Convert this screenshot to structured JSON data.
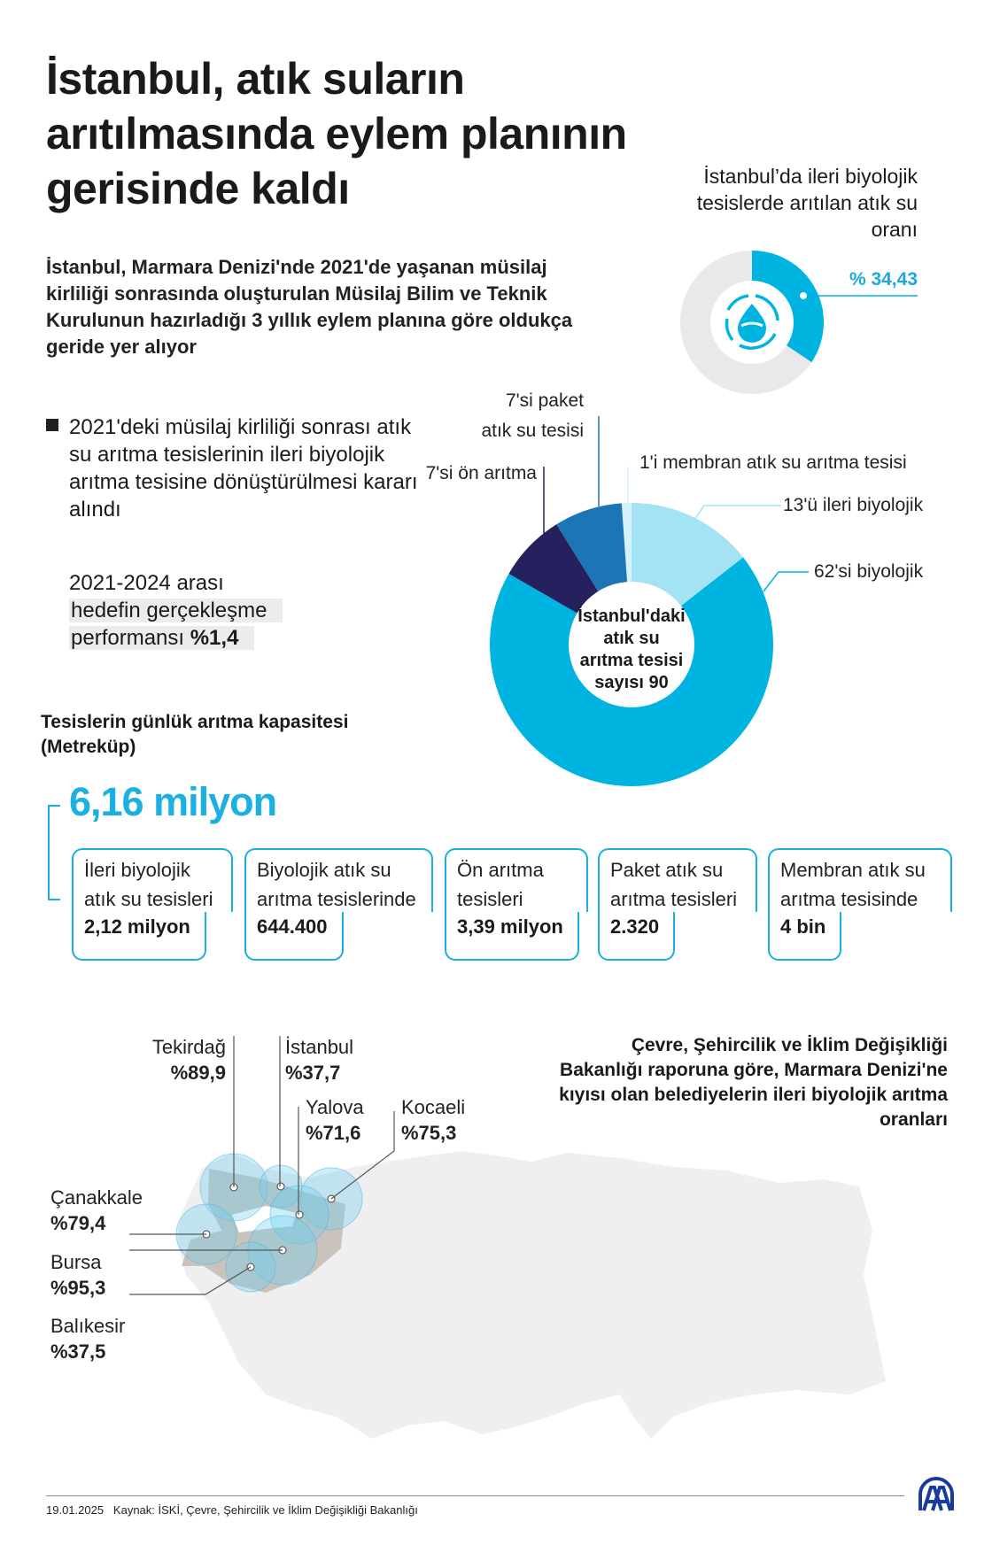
{
  "header": {
    "title_lines": [
      "İstanbul, atık suların",
      "arıtılmasında eylem planının",
      "gerisinde kaldı"
    ],
    "subtitle": "İstanbul, Marmara Denizi'nde 2021'de yaşanan müsilaj kirliliği sonrasında oluşturulan Müsilaj Bilim ve Teknik Kurulunun hazırladığı 3 yıllık eylem planına göre oldukça geride yer alıyor"
  },
  "rate": {
    "title": "İstanbul’da ileri biyolojik tesislerde arıtılan atık su oranı",
    "value_label": "% 34,43",
    "value": 34.43,
    "color": "#00b4e2",
    "bg": "#e9e9ec",
    "icon": "water-drop-recycle-icon"
  },
  "bullet": {
    "text": "2021'deki müsilaj kirliliği sonrası atık su arıtma tesislerinin ileri biyolojik arıtma tesisine dönüştürülmesi kararı alındı",
    "perf_line1": "2021-2024 arası",
    "perf_line2": "hedefin gerçekleşme",
    "perf_line3": "performansı ",
    "perf_value": "%1,4"
  },
  "chart_data": {
    "type": "pie",
    "title": "İstanbul'daki atık su arıtma tesisi sayısı 90",
    "center_lines": [
      "İstanbul'daki",
      "atık su",
      "arıtma tesisi",
      "sayısı 90"
    ],
    "total": 90,
    "slices": [
      {
        "label": "1'i membran atık su arıtma tesisi",
        "value": 1,
        "color": "#d6f1fa"
      },
      {
        "label": "13'ü ileri biyolojik",
        "value": 13,
        "color": "#a3e3f3"
      },
      {
        "label": "62'si biyolojik",
        "value": 62,
        "color": "#00b4e2"
      },
      {
        "label": "7'si ön arıtma",
        "value": 7,
        "color": "#25205e"
      },
      {
        "label_lines": [
          "7'si paket",
          "atık su tesisi"
        ],
        "label": "7'si paket atık su tesisi",
        "value": 7,
        "color": "#1c75b5"
      }
    ]
  },
  "capacity": {
    "title_lines": [
      "Tesislerin günlük arıtma kapasitesi",
      "(Metreküp)"
    ],
    "total": "6,16 milyon",
    "items": [
      {
        "l1": "İleri biyolojik",
        "l2": "atık su tesisleri",
        "value": "2,12 milyon"
      },
      {
        "l1": "Biyolojik atık su",
        "l2": "arıtma tesislerinde",
        "value": "644.400"
      },
      {
        "l1": "Ön arıtma",
        "l2": "tesisleri",
        "value": "3,39 milyon"
      },
      {
        "l1": "Paket atık su",
        "l2": "arıtma tesisleri",
        "value": "2.320"
      },
      {
        "l1": "Membran atık su",
        "l2": "arıtma tesisinde",
        "value": "4 bin"
      }
    ]
  },
  "map": {
    "title": "Çevre, Şehircilik ve İklim Değişikliği Bakanlığı raporuna göre, Marmara Denizi'ne kıyısı olan belediyelerin ileri biyolojik arıtma oranları",
    "cities": [
      {
        "name": "Tekirdağ",
        "value": "%89,9"
      },
      {
        "name": "İstanbul",
        "value": "%37,7"
      },
      {
        "name": "Yalova",
        "value": "%71,6"
      },
      {
        "name": "Kocaeli",
        "value": "%75,3"
      },
      {
        "name": "Çanakkale",
        "value": "%79,4"
      },
      {
        "name": "Bursa",
        "value": "%95,3"
      },
      {
        "name": "Balıkesir",
        "value": "%37,5"
      }
    ]
  },
  "footer": {
    "date": "19.01.2025",
    "source": "Kaynak: İSKİ, Çevre, Şehircilik ve İklim Değişikliği Bakanlığı",
    "logo": "AA"
  }
}
